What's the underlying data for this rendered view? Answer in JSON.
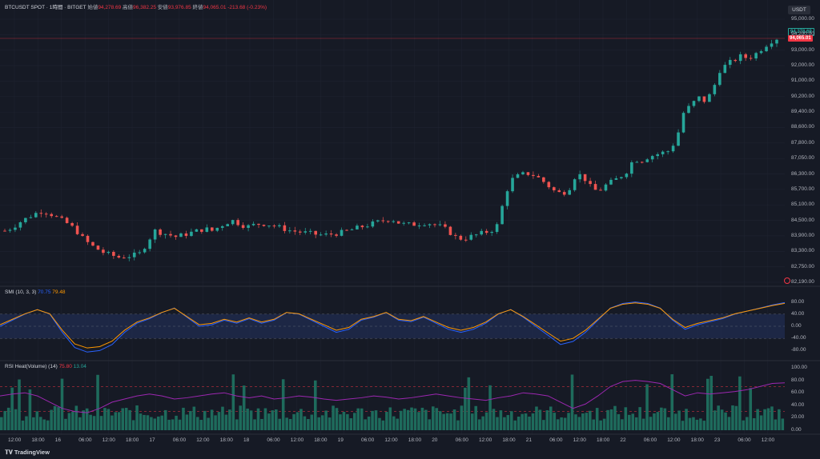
{
  "header": {
    "symbol": "BTCUSDT SPOT · 1時間 · BITGET",
    "open_label": "始値",
    "open_value": "94,278.69",
    "high_label": "高値",
    "high_value": "96,382.25",
    "low_label": "安値",
    "low_value": "93,976.85",
    "close_label": "終値",
    "close_value": "94,065.01",
    "change": "-213.68 (-0.23%)"
  },
  "currency_button": "USDT",
  "price_badges": {
    "last": "94,278.69",
    "current": "94,065.01"
  },
  "price_axis": [
    "95,000.00",
    "94,200.00",
    "93,000.00",
    "92,000.00",
    "91,000.00",
    "90,200.00",
    "89,400.00",
    "88,600.00",
    "87,800.00",
    "87,050.00",
    "86,300.00",
    "85,700.00",
    "85,100.00",
    "84,500.00",
    "83,900.00",
    "83,300.00",
    "82,750.00",
    "82,190.00"
  ],
  "smi": {
    "title": "SMI (10, 3, 3)",
    "value1": "70.75",
    "value2": "79.48",
    "axis": [
      "80.00",
      "40.00",
      "0.00",
      "-40.00",
      "-80.00"
    ]
  },
  "rsi": {
    "title": "RSI Heat(Volume) (14)",
    "value1": "75.80",
    "value2": "13.04",
    "axis": [
      "100.00",
      "80.00",
      "60.00",
      "40.00",
      "20.00",
      "0.00"
    ]
  },
  "time_axis": [
    "12:00",
    "18:00",
    "16",
    "06:00",
    "12:00",
    "18:00",
    "17",
    "06:00",
    "12:00",
    "18:00",
    "18",
    "06:00",
    "12:00",
    "18:00",
    "19",
    "06:00",
    "12:00",
    "18:00",
    "20",
    "06:00",
    "12:00",
    "18:00",
    "21",
    "06:00",
    "12:00",
    "18:00",
    "22",
    "06:00",
    "12:00",
    "18:00",
    "23",
    "06:00",
    "12:00"
  ],
  "branding": "TradingView",
  "colors": {
    "up": "#26a69a",
    "down": "#ef5350",
    "bg": "#161a25",
    "smi_k": "#2962ff",
    "smi_d": "#ff9800",
    "rsi_line": "#9c27b0",
    "rsi_hot": "#f23645"
  },
  "chart_data": {
    "type": "candlestick",
    "interval": "1h",
    "ylim": [
      82190,
      95000
    ],
    "close_path": [
      84700,
      84850,
      85100,
      85300,
      85500,
      85650,
      85600,
      85400,
      85200,
      85000,
      84700,
      84300,
      84000,
      83800,
      83600,
      83500,
      83400,
      83450,
      83500,
      83600,
      84200,
      84700,
      84600,
      84500,
      84400,
      84500,
      84600,
      84700,
      84800,
      84700,
      84900,
      85100,
      85200,
      85000,
      84900,
      85000,
      85050,
      85000,
      84900,
      84800,
      84700,
      84650,
      84600,
      84550,
      84500,
      84500,
      84550,
      84600,
      84700,
      84800,
      84900,
      85000,
      85100,
      85200,
      85300,
      85100,
      85000,
      85000,
      85050,
      85100,
      85000,
      84900,
      84700,
      84400,
      84300,
      84400,
      84500,
      84600,
      84700,
      85000,
      86500,
      87200,
      87400,
      87500,
      87400,
      87200,
      86900,
      86600,
      86500,
      86800,
      87500,
      87300,
      86800,
      86600,
      86900,
      87100,
      87300,
      87600,
      88200,
      88100,
      88300,
      88400,
      88500,
      88600,
      89200,
      90500,
      90800,
      91200,
      91000,
      91500,
      92500,
      92800,
      93000,
      93200,
      93100,
      93300,
      93600,
      93900,
      94065
    ]
  }
}
